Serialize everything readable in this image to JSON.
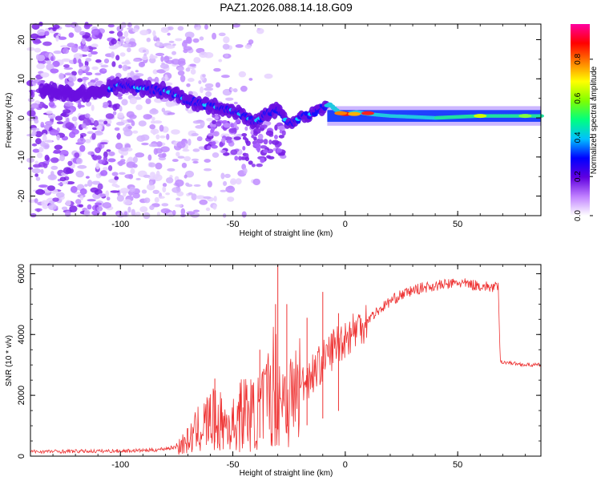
{
  "title": "PAZ1.2026.088.14.18.G09",
  "chart_data": [
    {
      "type": "heatmap",
      "name": "spectrogram",
      "xlabel": "Height of straight line (km)",
      "ylabel": "Frequency (Hz)",
      "xlim": [
        -140,
        87
      ],
      "ylim": [
        -25,
        24
      ],
      "xticks": [
        -100,
        -50,
        0,
        50
      ],
      "yticks": [
        20,
        10,
        0,
        -10,
        -20
      ],
      "colorbar": {
        "label": "Normalized spectral amplitude",
        "range": [
          0,
          0.98
        ],
        "ticks": [
          "0.0",
          "0.2",
          "0.4",
          "0.6",
          "0.8"
        ],
        "colors": [
          "#ffffff",
          "#c080ff",
          "#6000e0",
          "#0000ff",
          "#00c0ff",
          "#00ff80",
          "#80ff00",
          "#ffff00",
          "#ff8000",
          "#ff0000",
          "#ff00a0"
        ]
      },
      "ridge": {
        "x": [
          -135,
          -120,
          -110,
          -100,
          -90,
          -80,
          -70,
          -60,
          -50,
          -40,
          -35,
          -30,
          -25,
          -20,
          -15,
          -10,
          -7,
          -3,
          0,
          5,
          10,
          20,
          40,
          60,
          87
        ],
        "y": [
          7,
          6,
          6.5,
          8.5,
          7.5,
          7,
          4.5,
          3,
          2,
          -1,
          1,
          2,
          -1.5,
          0,
          1,
          2.5,
          3.5,
          1.5,
          1,
          1.5,
          1,
          0.5,
          0,
          0.5,
          0.5
        ]
      }
    },
    {
      "type": "line",
      "name": "snr",
      "xlabel": "Height of straight line (km)",
      "ylabel": "SNR (10 * v/v)",
      "xlim": [
        -140,
        87
      ],
      "ylim": [
        0,
        6300
      ],
      "xticks": [
        -100,
        -50,
        0,
        50
      ],
      "yticks": [
        0,
        2000,
        4000,
        6000
      ],
      "color": "#ee3333",
      "x": [
        -140,
        -120,
        -100,
        -85,
        -75,
        -70,
        -65,
        -60,
        -55,
        -50,
        -45,
        -40,
        -35,
        -32,
        -30,
        -28,
        -25,
        -20,
        -15,
        -10,
        -5,
        0,
        5,
        10,
        15,
        20,
        25,
        30,
        35,
        40,
        45,
        50,
        55,
        60,
        65,
        68,
        69,
        70,
        75,
        80,
        87
      ],
      "y": [
        150,
        160,
        170,
        200,
        300,
        500,
        900,
        1200,
        1100,
        1000,
        1500,
        1300,
        1800,
        2400,
        2200,
        2000,
        1800,
        2300,
        2700,
        3100,
        3600,
        3900,
        4200,
        4500,
        4800,
        5100,
        5300,
        5450,
        5550,
        5600,
        5650,
        5700,
        5650,
        5600,
        5550,
        5550,
        3100,
        3100,
        3050,
        3000,
        3000
      ],
      "spikes": [
        {
          "x": -58,
          "y": 2550
        },
        {
          "x": -47,
          "y": 2050
        },
        {
          "x": -38,
          "y": 3500
        },
        {
          "x": -30,
          "y": 6300
        },
        {
          "x": -31,
          "y": 5000
        },
        {
          "x": -26,
          "y": 5000
        },
        {
          "x": -17,
          "y": 4550
        },
        {
          "x": -10,
          "y": 5400
        },
        {
          "x": -3,
          "y": 4700
        }
      ]
    }
  ]
}
